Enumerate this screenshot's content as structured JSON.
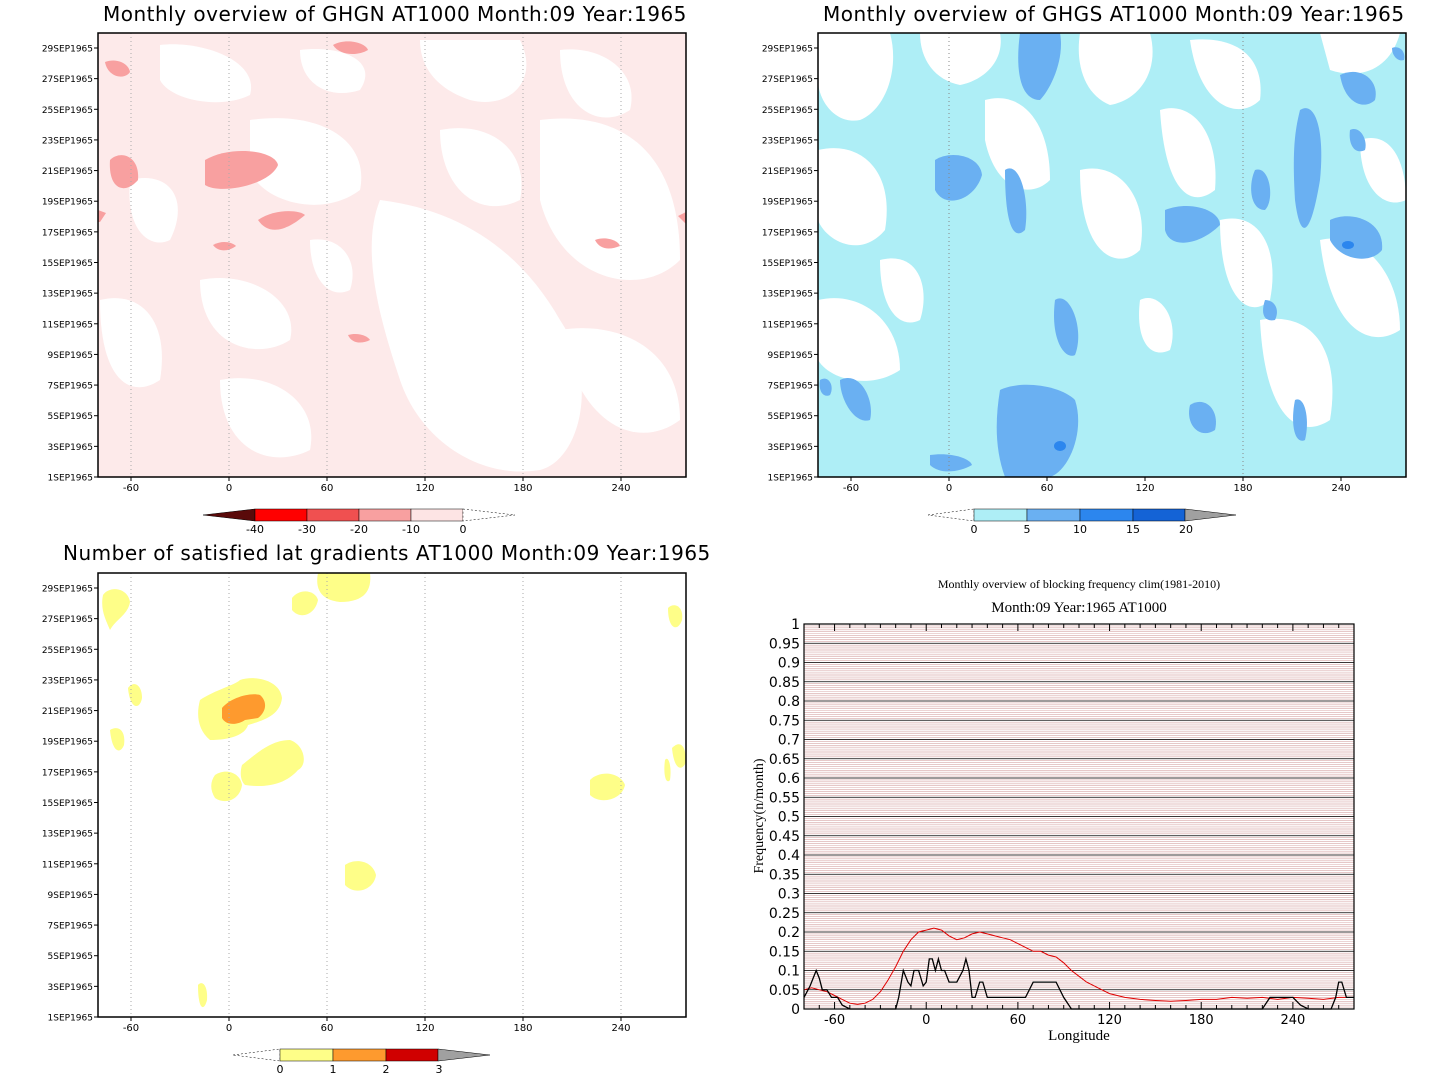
{
  "panels": {
    "ghgn": {
      "title": "Monthly overview of GHGN AT1000 Month:09 Year:1965",
      "y_ticks": [
        "1SEP1965",
        "3SEP1965",
        "5SEP1965",
        "7SEP1965",
        "9SEP1965",
        "11SEP1965",
        "13SEP1965",
        "15SEP1965",
        "17SEP1965",
        "19SEP1965",
        "21SEP1965",
        "23SEP1965",
        "25SEP1965",
        "27SEP1965",
        "29SEP1965"
      ],
      "x_ticks": [
        "-60",
        "0",
        "60",
        "120",
        "180",
        "240"
      ],
      "colorbar": {
        "labels": [
          "-40",
          "-30",
          "-20",
          "-10",
          "0"
        ],
        "colors": [
          "#5a0a0a",
          "#ff0000",
          "#f05050",
          "#f8a0a0",
          "#fde4e4"
        ]
      }
    },
    "ghgs": {
      "title": "Monthly overview of GHGS AT1000 Month:09 Year:1965",
      "y_ticks": [
        "1SEP1965",
        "3SEP1965",
        "5SEP1965",
        "7SEP1965",
        "9SEP1965",
        "11SEP1965",
        "13SEP1965",
        "15SEP1965",
        "17SEP1965",
        "19SEP1965",
        "21SEP1965",
        "23SEP1965",
        "25SEP1965",
        "27SEP1965",
        "29SEP1965"
      ],
      "x_ticks": [
        "-60",
        "0",
        "60",
        "120",
        "180",
        "240"
      ],
      "colorbar": {
        "labels": [
          "0",
          "5",
          "10",
          "15",
          "20"
        ],
        "colors": [
          "#aeeef6",
          "#6ab0f2",
          "#2c86ee",
          "#1463d6",
          "#a0a0a0"
        ]
      }
    },
    "lat": {
      "title": "Number of satisfied lat gradients AT1000 Month:09 Year:1965",
      "y_ticks": [
        "1SEP1965",
        "3SEP1965",
        "5SEP1965",
        "7SEP1965",
        "9SEP1965",
        "11SEP1965",
        "13SEP1965",
        "15SEP1965",
        "17SEP1965",
        "19SEP1965",
        "21SEP1965",
        "23SEP1965",
        "25SEP1965",
        "27SEP1965",
        "29SEP1965"
      ],
      "x_ticks": [
        "-60",
        "0",
        "60",
        "120",
        "180",
        "240"
      ],
      "colorbar": {
        "labels": [
          "0",
          "1",
          "2",
          "3"
        ],
        "colors": [
          "#fefe88",
          "#fe9a2e",
          "#d00000",
          "#a0a0a0"
        ]
      }
    },
    "freq": {
      "title": "Monthly overview of blocking frequency clim(1981-2010)",
      "subtitle": "Month:09 Year:1965  AT1000",
      "xlabel": "Longitude",
      "ylabel": "Frequency(n/month)"
    }
  },
  "colors": {
    "ghgn_light": "#fde4e4",
    "ghgn_mid": "#f8a0a0",
    "ghgs_light": "#aeeef6",
    "ghgs_mid": "#6ab0f2",
    "ghgs_dark": "#2c86ee",
    "lat_yellow": "#fefe88",
    "lat_orange": "#fe9a2e",
    "clim_line": "#e00000",
    "year_line": "#000000",
    "bg_stripe": "#e8c8c8"
  },
  "chart_data": [
    {
      "type": "heatmap",
      "title": "Monthly overview of GHGN AT1000 Month:09 Year:1965",
      "x_range": [
        -75,
        280
      ],
      "y_range": [
        "1SEP1965",
        "30SEP1965"
      ],
      "levels": [
        -40,
        -30,
        -20,
        -10,
        0
      ]
    },
    {
      "type": "heatmap",
      "title": "Monthly overview of GHGS AT1000 Month:09 Year:1965",
      "x_range": [
        -75,
        280
      ],
      "y_range": [
        "1SEP1965",
        "30SEP1965"
      ],
      "levels": [
        0,
        5,
        10,
        15,
        20
      ]
    },
    {
      "type": "heatmap",
      "title": "Number of satisfied lat gradients AT1000 Month:09 Year:1965",
      "x_range": [
        -75,
        280
      ],
      "y_range": [
        "1SEP1965",
        "30SEP1965"
      ],
      "levels": [
        0,
        1,
        2,
        3
      ]
    },
    {
      "type": "line",
      "title": "Monthly overview of blocking frequency clim(1981-2010)",
      "subtitle": "Month:09 Year:1965  AT1000",
      "xlabel": "Longitude",
      "ylabel": "Frequency(n/month)",
      "xlim": [
        -80,
        280
      ],
      "ylim": [
        0,
        1
      ],
      "x_ticks": [
        -60,
        0,
        60,
        120,
        180,
        240
      ],
      "y_ticks": [
        0,
        0.05,
        0.1,
        0.15,
        0.2,
        0.25,
        0.3,
        0.35,
        0.4,
        0.45,
        0.5,
        0.55,
        0.6,
        0.65,
        0.7,
        0.75,
        0.8,
        0.85,
        0.9,
        0.95,
        1
      ],
      "y_tick_labels": [
        "0",
        "0.05",
        "0.1",
        "0.15",
        "0.2",
        "0.25",
        "0.3",
        "0.35",
        "0.4",
        "0.45",
        "0.5",
        "0.55",
        "0.6",
        "0.65",
        "0.7",
        "0.75",
        "0.8",
        "0.85",
        "0.9",
        "0.95",
        "1"
      ],
      "x_tick_labels": [
        "-60",
        "0",
        "60",
        "120",
        "180",
        "240"
      ],
      "series": [
        {
          "x": [
            -80,
            -75,
            -70,
            -65,
            -60,
            -55,
            -50,
            -45,
            -40,
            -35,
            -30,
            -25,
            -20,
            -15,
            -10,
            -5,
            0,
            5,
            10,
            15,
            20,
            25,
            30,
            35,
            40,
            45,
            50,
            55,
            60,
            65,
            70,
            75,
            80,
            85,
            90,
            95,
            100,
            105,
            110,
            115,
            120,
            130,
            140,
            150,
            160,
            170,
            180,
            190,
            200,
            210,
            220,
            230,
            240,
            250,
            260,
            270,
            280
          ],
          "values": [
            0.05,
            0.055,
            0.05,
            0.045,
            0.035,
            0.025,
            0.015,
            0.012,
            0.015,
            0.025,
            0.045,
            0.075,
            0.11,
            0.15,
            0.18,
            0.2,
            0.205,
            0.21,
            0.205,
            0.19,
            0.18,
            0.185,
            0.195,
            0.2,
            0.195,
            0.19,
            0.185,
            0.18,
            0.17,
            0.16,
            0.15,
            0.15,
            0.14,
            0.135,
            0.12,
            0.1,
            0.085,
            0.07,
            0.06,
            0.05,
            0.04,
            0.03,
            0.025,
            0.022,
            0.02,
            0.022,
            0.025,
            0.025,
            0.03,
            0.028,
            0.03,
            0.025,
            0.03,
            0.028,
            0.025,
            0.03,
            0.03
          ]
        },
        {
          "x": [
            -80,
            -76,
            -72,
            -70,
            -68,
            -65,
            -62,
            -58,
            -55,
            -50,
            -20,
            -18,
            -15,
            -12,
            -10,
            -8,
            -5,
            -2,
            0,
            2,
            4,
            6,
            8,
            10,
            12,
            15,
            20,
            24,
            26,
            28,
            30,
            32,
            35,
            37,
            40,
            50,
            60,
            65,
            70,
            75,
            80,
            85,
            90,
            95,
            210,
            220,
            225,
            230,
            235,
            240,
            245,
            250,
            265,
            268,
            270,
            272,
            275,
            280
          ],
          "values": [
            0.03,
            0.06,
            0.1,
            0.08,
            0.05,
            0.05,
            0.03,
            0.03,
            0.01,
            0,
            0,
            0.03,
            0.1,
            0.07,
            0.06,
            0.1,
            0.1,
            0.06,
            0.07,
            0.13,
            0.13,
            0.1,
            0.13,
            0.1,
            0.1,
            0.07,
            0.07,
            0.1,
            0.13,
            0.1,
            0.03,
            0.03,
            0.07,
            0.07,
            0.03,
            0.03,
            0.03,
            0.03,
            0.07,
            0.07,
            0.07,
            0.07,
            0.03,
            0,
            0,
            0,
            0.03,
            0.03,
            0.03,
            0.03,
            0.01,
            0,
            0,
            0.03,
            0.07,
            0.07,
            0.03,
            0.03
          ]
        }
      ]
    }
  ]
}
